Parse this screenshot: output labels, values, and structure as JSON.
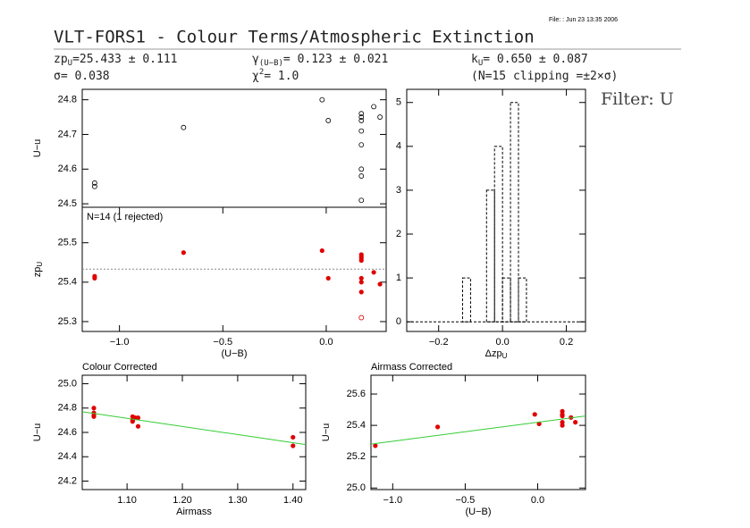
{
  "header": {
    "file": "File:  : Jun 23 13:35 2006",
    "title": "VLT-FORS1 - Colour Terms/Atmospheric Extinction",
    "filter": "Filter: U",
    "stats": [
      {
        "main": "zp",
        "sub": "U",
        "rest": "=25.433 ± 0.111"
      },
      {
        "main": "γ",
        "sub": "(U−B)",
        "rest": "= 0.123 ± 0.021"
      },
      {
        "main": "k",
        "sub": "U",
        "rest": "= 0.650 ± 0.087"
      },
      {
        "main": "σ= 0.038"
      },
      {
        "main": "χ",
        "sup": "2",
        "rest": "=  1.0"
      },
      {
        "main": "(N=15 clipping =±2×σ)"
      }
    ]
  },
  "chart_data": [
    {
      "type": "scatter",
      "ylabel": "U−u",
      "xlim": [
        -1.18,
        0.29
      ],
      "ylim": [
        24.49,
        24.83
      ],
      "yticks": [
        24.5,
        24.6,
        24.7,
        24.8
      ],
      "series": [
        {
          "marker": "open",
          "color": "#000000",
          "x": [
            -1.12,
            -1.12,
            -0.69,
            -0.02,
            0.01,
            0.17,
            0.17,
            0.17,
            0.17,
            0.17,
            0.17,
            0.17,
            0.17,
            0.23,
            0.26
          ],
          "values": [
            24.56,
            24.55,
            24.72,
            24.8,
            24.74,
            24.76,
            24.75,
            24.74,
            24.71,
            24.67,
            24.6,
            24.58,
            24.51,
            24.78,
            24.75
          ]
        }
      ]
    },
    {
      "type": "scatter",
      "ylabel": "zp",
      "ylabel_sub": "U",
      "xlabel": "(U−B)",
      "annotation": "N=14 (1 rejected)",
      "xlim": [
        -1.18,
        0.29
      ],
      "ylim": [
        25.275,
        25.59
      ],
      "xticks": [
        {
          "value": -1.0,
          "label": "−1.0"
        },
        {
          "value": -0.5,
          "label": "−0.5"
        },
        {
          "value": 0,
          "label": "0.0"
        }
      ],
      "yticks": [
        {
          "value": 25.3,
          "label": "25.3"
        },
        {
          "value": 25.4,
          "label": "25.4"
        },
        {
          "value": 25.5,
          "label": "25.5"
        }
      ],
      "hline": 25.433,
      "series": [
        {
          "marker": "filled",
          "color": "#e00000",
          "x": [
            -1.12,
            -1.12,
            -0.69,
            -0.02,
            0.01,
            0.17,
            0.17,
            0.17,
            0.17,
            0.17,
            0.17,
            0.23,
            0.26,
            0.17
          ],
          "values": [
            25.415,
            25.41,
            25.475,
            25.48,
            25.41,
            25.47,
            25.46,
            25.455,
            25.41,
            25.4,
            25.375,
            25.425,
            25.395,
            25.465
          ]
        },
        {
          "marker": "open",
          "color": "#e00000",
          "x": [
            0.17
          ],
          "values": [
            25.31
          ]
        }
      ]
    },
    {
      "type": "histogram",
      "xlabel": "Δzp",
      "xlabel_sub": "U",
      "xlim": [
        -0.3,
        0.26
      ],
      "ylim": [
        -0.22,
        5.3
      ],
      "xticks": [
        {
          "value": -0.2,
          "label": "−0.2"
        },
        {
          "value": 0,
          "label": "0.0"
        },
        0.2
      ],
      "yticks": [
        0,
        1,
        2,
        3,
        4,
        5
      ],
      "bins": [
        -0.125,
        -0.1,
        -0.075,
        -0.05,
        -0.025,
        0,
        0.025,
        0.05,
        0.075
      ],
      "counts": [
        1,
        0,
        0,
        3,
        4,
        1,
        5,
        1
      ],
      "color": "#000000"
    },
    {
      "type": "scatter",
      "title": "Colour Corrected",
      "ylabel": "U−u",
      "xlabel": "Airmass",
      "xlim": [
        1.019,
        1.423
      ],
      "ylim": [
        24.13,
        25.07
      ],
      "xticks": [
        {
          "value": 1.1,
          "label": "1.10"
        },
        {
          "value": 1.2,
          "label": "1.20"
        },
        {
          "value": 1.3,
          "label": "1.30"
        },
        {
          "value": 1.4,
          "label": "1.40"
        }
      ],
      "yticks": [
        {
          "value": 24.2,
          "label": "24.2"
        },
        24.4,
        24.6,
        24.8,
        {
          "value": 25.0,
          "label": "25.0"
        }
      ],
      "series": [
        {
          "marker": "filled",
          "color": "#e00000",
          "x": [
            1.04,
            1.04,
            1.04,
            1.04,
            1.11,
            1.11,
            1.11,
            1.115,
            1.12,
            1.12,
            1.4,
            1.4
          ],
          "values": [
            24.8,
            24.76,
            24.74,
            24.73,
            24.73,
            24.7,
            24.69,
            24.72,
            24.72,
            24.65,
            24.56,
            24.49
          ]
        },
        {
          "marker": "line",
          "color": "#33cc33",
          "x": [
            1.019,
            1.423
          ],
          "values": [
            24.77,
            24.5
          ]
        }
      ]
    },
    {
      "type": "scatter",
      "title": "Airmass Corrected",
      "ylabel": "U−u",
      "xlabel": "(U−B)",
      "xlim": [
        -1.15,
        0.33
      ],
      "ylim": [
        24.99,
        25.72
      ],
      "xticks": [
        {
          "value": -1.0,
          "label": "−1.0"
        },
        {
          "value": -0.5,
          "label": "−0.5"
        },
        {
          "value": 0,
          "label": "0.0"
        }
      ],
      "yticks": [
        {
          "value": 25.0,
          "label": "25.0"
        },
        25.2,
        25.4,
        25.6
      ],
      "series": [
        {
          "marker": "filled",
          "color": "#e00000",
          "x": [
            -1.12,
            -0.69,
            -0.02,
            0.01,
            0.17,
            0.17,
            0.17,
            0.17,
            0.17,
            0.23,
            0.26
          ],
          "values": [
            25.27,
            25.39,
            25.47,
            25.41,
            25.49,
            25.47,
            25.46,
            25.42,
            25.4,
            25.45,
            25.42
          ]
        },
        {
          "marker": "line",
          "color": "#33cc33",
          "x": [
            -1.15,
            0.33
          ],
          "values": [
            25.28,
            25.46
          ]
        }
      ]
    }
  ]
}
